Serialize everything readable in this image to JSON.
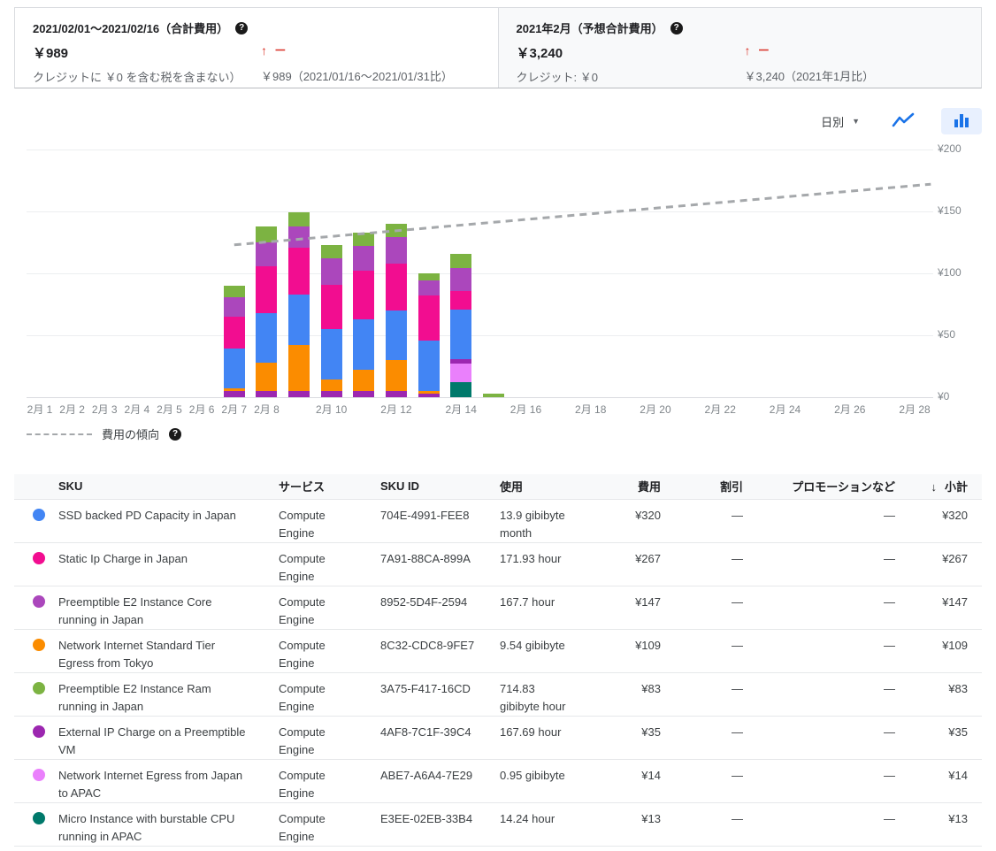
{
  "summary": {
    "period": {
      "title": "2021/02/01～2021/02/16（合計費用）",
      "value": "￥989",
      "note": "クレジットに ￥0 を含む税を含まない）",
      "trend_arrow": "↑",
      "trend_change": "－",
      "comparison": "￥989（2021/01/16～2021/01/31比）"
    },
    "forecast": {
      "title": "2021年2月（予想合計費用）",
      "value": "￥3,240",
      "note": "クレジット: ￥0",
      "trend_arrow": "↑",
      "trend_change": "－",
      "comparison": "￥3,240（2021年1月比）"
    }
  },
  "chart_controls": {
    "granularity": "日別",
    "dropdown_icon": "▼"
  },
  "icons": {
    "help": "?",
    "sort_desc": "↓"
  },
  "chart_data": {
    "type": "bar",
    "stacked": true,
    "currency": "¥",
    "ylim": [
      0,
      200
    ],
    "grid": true,
    "y_ticks": [
      {
        "value": 0,
        "label": "¥0"
      },
      {
        "value": 50,
        "label": "¥50"
      },
      {
        "value": 100,
        "label": "¥100"
      },
      {
        "value": 150,
        "label": "¥150"
      },
      {
        "value": 200,
        "label": "¥200"
      }
    ],
    "x_ticks": [
      {
        "day": 1,
        "label": "2月 1"
      },
      {
        "day": 2,
        "label": "2月 2"
      },
      {
        "day": 3,
        "label": "2月 3"
      },
      {
        "day": 4,
        "label": "2月 4"
      },
      {
        "day": 5,
        "label": "2月 5"
      },
      {
        "day": 6,
        "label": "2月 6"
      },
      {
        "day": 7,
        "label": "2月 7"
      },
      {
        "day": 8,
        "label": "2月 8"
      },
      {
        "day": 10,
        "label": "2月 10"
      },
      {
        "day": 12,
        "label": "2月 12"
      },
      {
        "day": 14,
        "label": "2月 14"
      },
      {
        "day": 16,
        "label": "2月 16"
      },
      {
        "day": 18,
        "label": "2月 18"
      },
      {
        "day": 20,
        "label": "2月 20"
      },
      {
        "day": 22,
        "label": "2月 22"
      },
      {
        "day": 24,
        "label": "2月 24"
      },
      {
        "day": 26,
        "label": "2月 26"
      },
      {
        "day": 28,
        "label": "2月 28"
      }
    ],
    "series": [
      {
        "key": "ssd",
        "name": "SSD backed PD Capacity in Japan",
        "color": "#4285F4"
      },
      {
        "key": "static_ip",
        "name": "Static Ip Charge in Japan",
        "color": "#F20D90"
      },
      {
        "key": "core",
        "name": "Preemptible E2 Instance Core running in Japan",
        "color": "#AB47BC"
      },
      {
        "key": "net_tier",
        "name": "Network Internet Standard Tier Egress from Tokyo",
        "color": "#FB8C00"
      },
      {
        "key": "ram",
        "name": "Preemptible E2 Instance Ram running in Japan",
        "color": "#7CB342"
      },
      {
        "key": "ext_ip",
        "name": "External IP Charge on a Preemptible VM",
        "color": "#9C27B0"
      },
      {
        "key": "apac",
        "name": "Network Internet Egress from Japan to APAC",
        "color": "#EA80FC"
      },
      {
        "key": "micro",
        "name": "Micro Instance with burstable CPU running in APAC",
        "color": "#00796B"
      }
    ],
    "bars": [
      {
        "day": 7,
        "segments": [
          {
            "s": "ext_ip",
            "v": 5
          },
          {
            "s": "net_tier",
            "v": 2
          },
          {
            "s": "ssd",
            "v": 32
          },
          {
            "s": "static_ip",
            "v": 26
          },
          {
            "s": "core",
            "v": 16
          },
          {
            "s": "ram",
            "v": 9
          }
        ]
      },
      {
        "day": 8,
        "segments": [
          {
            "s": "ext_ip",
            "v": 5
          },
          {
            "s": "net_tier",
            "v": 23
          },
          {
            "s": "ssd",
            "v": 40
          },
          {
            "s": "static_ip",
            "v": 38
          },
          {
            "s": "core",
            "v": 19
          },
          {
            "s": "ram",
            "v": 13
          }
        ]
      },
      {
        "day": 9,
        "segments": [
          {
            "s": "ext_ip",
            "v": 5
          },
          {
            "s": "net_tier",
            "v": 37
          },
          {
            "s": "ssd",
            "v": 41
          },
          {
            "s": "static_ip",
            "v": 38
          },
          {
            "s": "core",
            "v": 17
          },
          {
            "s": "ram",
            "v": 11
          }
        ]
      },
      {
        "day": 10,
        "segments": [
          {
            "s": "ext_ip",
            "v": 5
          },
          {
            "s": "net_tier",
            "v": 9
          },
          {
            "s": "ssd",
            "v": 41
          },
          {
            "s": "static_ip",
            "v": 36
          },
          {
            "s": "core",
            "v": 21
          },
          {
            "s": "ram",
            "v": 11
          }
        ]
      },
      {
        "day": 11,
        "segments": [
          {
            "s": "ext_ip",
            "v": 5
          },
          {
            "s": "net_tier",
            "v": 17
          },
          {
            "s": "ssd",
            "v": 41
          },
          {
            "s": "static_ip",
            "v": 39
          },
          {
            "s": "core",
            "v": 20
          },
          {
            "s": "ram",
            "v": 11
          }
        ]
      },
      {
        "day": 12,
        "segments": [
          {
            "s": "ext_ip",
            "v": 5
          },
          {
            "s": "net_tier",
            "v": 25
          },
          {
            "s": "ssd",
            "v": 40
          },
          {
            "s": "static_ip",
            "v": 38
          },
          {
            "s": "core",
            "v": 21
          },
          {
            "s": "ram",
            "v": 11
          }
        ]
      },
      {
        "day": 13,
        "segments": [
          {
            "s": "ext_ip",
            "v": 3
          },
          {
            "s": "net_tier",
            "v": 2
          },
          {
            "s": "ssd",
            "v": 41
          },
          {
            "s": "static_ip",
            "v": 36
          },
          {
            "s": "core",
            "v": 12
          },
          {
            "s": "ram",
            "v": 6
          }
        ]
      },
      {
        "day": 14,
        "segments": [
          {
            "s": "micro",
            "v": 12
          },
          {
            "s": "apac",
            "v": 15
          },
          {
            "s": "ext_ip",
            "v": 4
          },
          {
            "s": "ssd",
            "v": 40
          },
          {
            "s": "static_ip",
            "v": 15
          },
          {
            "s": "core",
            "v": 18
          },
          {
            "s": "ram",
            "v": 12
          }
        ]
      },
      {
        "day": 15,
        "segments": [
          {
            "s": "ram",
            "v": 3
          }
        ]
      }
    ],
    "trend": {
      "label": "費用の傾向",
      "points": [
        {
          "day": 7,
          "value": 123
        },
        {
          "day": 28.5,
          "value": 172
        }
      ]
    },
    "legend_position": "bottom-left"
  },
  "table": {
    "columns": [
      "SKU",
      "サービス",
      "SKU ID",
      "使用",
      "費用",
      "割引",
      "プロモーションなど",
      "小計"
    ],
    "rows": [
      {
        "color": "#4285F4",
        "sku": "SSD backed PD Capacity in Japan",
        "service": "Compute Engine",
        "sku_id": "704E-4991-FEE8",
        "usage": "13.9 gibibyte month",
        "cost": "¥320",
        "discount": "—",
        "promo": "—",
        "subtotal": "¥320"
      },
      {
        "color": "#F20D90",
        "sku": "Static Ip Charge in Japan",
        "service": "Compute Engine",
        "sku_id": "7A91-88CA-899A",
        "usage": "171.93 hour",
        "cost": "¥267",
        "discount": "—",
        "promo": "—",
        "subtotal": "¥267"
      },
      {
        "color": "#AB47BC",
        "sku": "Preemptible E2 Instance Core running in Japan",
        "service": "Compute Engine",
        "sku_id": "8952-5D4F-2594",
        "usage": "167.7 hour",
        "cost": "¥147",
        "discount": "—",
        "promo": "—",
        "subtotal": "¥147"
      },
      {
        "color": "#FB8C00",
        "sku": "Network Internet Standard Tier Egress from Tokyo",
        "service": "Compute Engine",
        "sku_id": "8C32-CDC8-9FE7",
        "usage": "9.54 gibibyte",
        "cost": "¥109",
        "discount": "—",
        "promo": "—",
        "subtotal": "¥109"
      },
      {
        "color": "#7CB342",
        "sku": "Preemptible E2 Instance Ram running in Japan",
        "service": "Compute Engine",
        "sku_id": "3A75-F417-16CD",
        "usage": "714.83 gibibyte hour",
        "cost": "¥83",
        "discount": "—",
        "promo": "—",
        "subtotal": "¥83"
      },
      {
        "color": "#9C27B0",
        "sku": "External IP Charge on a Preemptible VM",
        "service": "Compute Engine",
        "sku_id": "4AF8-7C1F-39C4",
        "usage": "167.69 hour",
        "cost": "¥35",
        "discount": "—",
        "promo": "—",
        "subtotal": "¥35"
      },
      {
        "color": "#EA80FC",
        "sku": "Network Internet Egress from Japan to APAC",
        "service": "Compute Engine",
        "sku_id": "ABE7-A6A4-7E29",
        "usage": "0.95 gibibyte",
        "cost": "¥14",
        "discount": "—",
        "promo": "—",
        "subtotal": "¥14"
      },
      {
        "color": "#00796B",
        "sku": "Micro Instance with burstable CPU running in APAC",
        "service": "Compute Engine",
        "sku_id": "E3EE-02EB-33B4",
        "usage": "14.24 hour",
        "cost": "¥13",
        "discount": "—",
        "promo": "—",
        "subtotal": "¥13"
      }
    ]
  }
}
